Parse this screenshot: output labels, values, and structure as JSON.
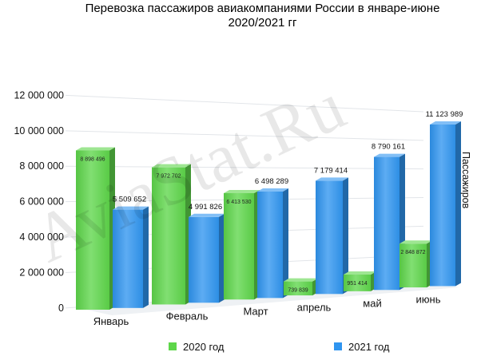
{
  "chart_data": {
    "type": "bar",
    "title_line1": "Перевозка пассажиров авиакомпаниями России в январе-июне",
    "title_line2": "2020/2021 гг",
    "categories": [
      "Январь",
      "Февраль",
      "Март",
      "апрель",
      "май",
      "июнь"
    ],
    "series": [
      {
        "name": "2020 год",
        "color": "#5ed64a",
        "values": [
          8898496,
          7972702,
          6413530,
          739839,
          951414,
          2848872
        ],
        "labels": [
          "8 898 496",
          "7 972 702",
          "6 413 530",
          "739 839",
          "951 414",
          "2 848 872"
        ]
      },
      {
        "name": "2021 год",
        "color": "#2f95f0",
        "values": [
          5509652,
          4991826,
          6498289,
          7179414,
          8790161,
          11123989
        ],
        "labels": [
          "5 509 652",
          "4 991 826",
          "6 498 289",
          "7 179 414",
          "8 790 161",
          "11 123 989"
        ]
      }
    ],
    "ylabel": "Пассажиров",
    "xlabel": "",
    "ylim": [
      0,
      12000000
    ],
    "yticks": [
      0,
      2000000,
      4000000,
      6000000,
      8000000,
      10000000,
      12000000
    ],
    "ytick_labels": [
      "0",
      "2 000 000",
      "4 000 000",
      "6 000 000",
      "8 000 000",
      "10 000 000",
      "12 000 000"
    ],
    "grid": true,
    "legend": "bottom",
    "watermark": "AviaStat.Ru"
  }
}
